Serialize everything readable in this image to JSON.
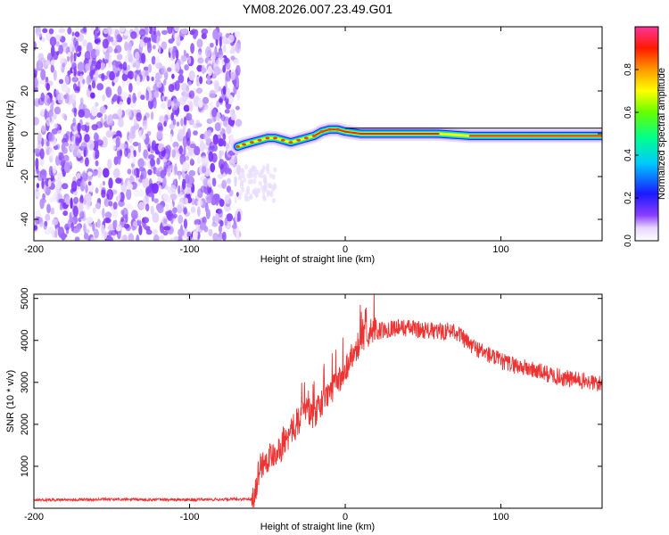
{
  "title": "YM08.2026.007.23.49.G01",
  "chart_data": [
    {
      "type": "heatmap",
      "xlabel": "Height of straight line (km)",
      "ylabel": "Frequency (Hz)",
      "xlim": [
        -200,
        165
      ],
      "ylim": [
        -50,
        50
      ],
      "xticks": [
        -200,
        -100,
        0,
        100
      ],
      "yticks": [
        -40,
        -20,
        0,
        20,
        40
      ],
      "noise_region_x": [
        -200,
        -68
      ],
      "ridge": {
        "x": [
          -69,
          -65,
          -60,
          -55,
          -50,
          -45,
          -40,
          -35,
          -30,
          -25,
          -20,
          -15,
          -10,
          -5,
          0,
          10,
          20,
          40,
          60,
          80,
          100,
          120,
          140,
          165
        ],
        "freq": [
          -6,
          -5,
          -4,
          -3,
          -2,
          -2,
          -3,
          -4,
          -3,
          -2,
          -1,
          1,
          2,
          2,
          1,
          0,
          0,
          0,
          0,
          -1,
          -1,
          -1,
          -1,
          -1
        ]
      },
      "colorbar": {
        "label": "Normalized spectral amplitude",
        "range": [
          0,
          1
        ],
        "ticks": [
          0.0,
          0.2,
          0.4,
          0.6,
          0.8
        ]
      }
    },
    {
      "type": "line",
      "xlabel": "Height of straight line (km)",
      "ylabel": "SNR (10 * v/v)",
      "xlim": [
        -200,
        165
      ],
      "ylim": [
        0,
        5100
      ],
      "xticks": [
        -200,
        -100,
        0,
        100
      ],
      "yticks": [
        1000,
        2000,
        3000,
        4000,
        5000
      ],
      "series": [
        {
          "name": "SNR",
          "color": "#ee3333",
          "x": [
            -200,
            -150,
            -100,
            -60,
            -58,
            -55,
            -50,
            -45,
            -40,
            -35,
            -30,
            -25,
            -20,
            -15,
            -10,
            -5,
            0,
            5,
            10,
            15,
            20,
            30,
            40,
            50,
            60,
            70,
            80,
            90,
            100,
            110,
            120,
            130,
            140,
            150,
            165
          ],
          "y": [
            200,
            210,
            200,
            220,
            400,
            1000,
            1200,
            1350,
            1500,
            1800,
            2100,
            2400,
            2200,
            2500,
            2800,
            3000,
            3300,
            3700,
            4000,
            4200,
            4200,
            4300,
            4300,
            4250,
            4200,
            4250,
            3900,
            3700,
            3500,
            3400,
            3300,
            3200,
            3100,
            3050,
            2950
          ]
        }
      ]
    }
  ]
}
